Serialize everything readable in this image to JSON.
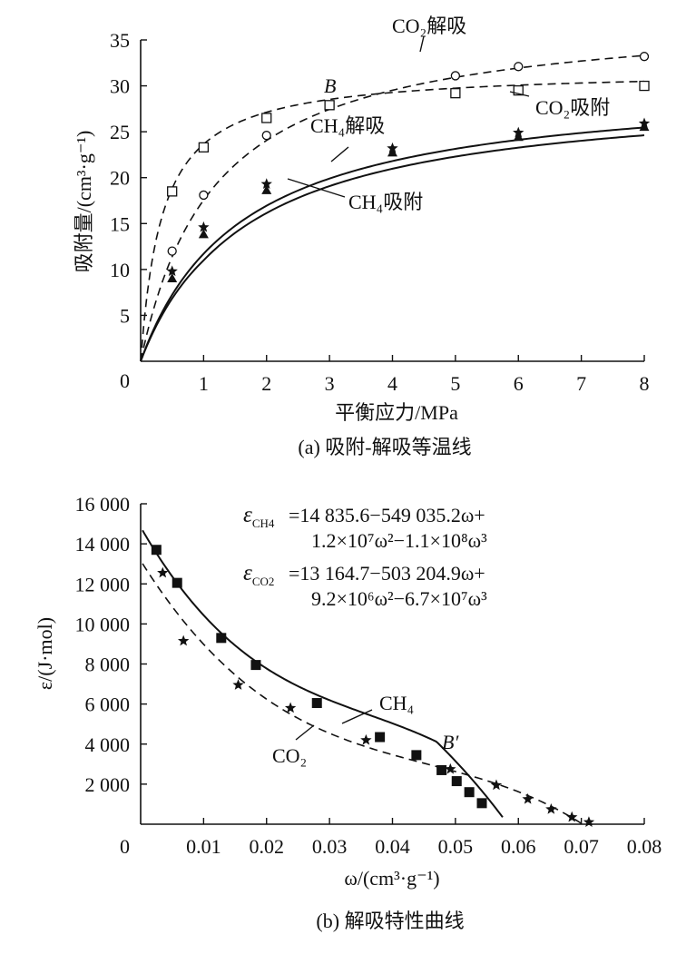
{
  "chart_data": [
    {
      "type": "line",
      "caption": "(a) 吸附-解吸等温线",
      "xlabel": "平衡应力/MPa",
      "ylabel": "吸附量/(cm³·g⁻¹)",
      "xlim": [
        0,
        8
      ],
      "ylim": [
        0,
        35
      ],
      "x_ticks": [
        "0",
        "1",
        "2",
        "3",
        "4",
        "5",
        "6",
        "7",
        "8"
      ],
      "y_ticks": [
        "5",
        "10",
        "15",
        "20",
        "25",
        "30",
        "35"
      ],
      "grid": false,
      "point_label": "B",
      "series": [
        {
          "name": "CO₂解吸",
          "line": "dashed",
          "marker": "circle",
          "x": [
            0.5,
            1,
            2,
            5,
            6,
            8
          ],
          "values": [
            12.0,
            18.1,
            24.6,
            31.1,
            32.1,
            33.2
          ]
        },
        {
          "name": "CO₂吸附",
          "line": "dashed",
          "marker": "square",
          "x": [
            0.5,
            1,
            2,
            3,
            5,
            6,
            8
          ],
          "values": [
            18.5,
            23.3,
            26.5,
            27.9,
            29.2,
            29.5,
            30.0
          ]
        },
        {
          "name": "CH₄解吸",
          "line": "solid",
          "marker": "star",
          "x": [
            0.5,
            1,
            2,
            4,
            6,
            8
          ],
          "values": [
            9.8,
            14.6,
            19.3,
            23.2,
            24.9,
            25.9
          ]
        },
        {
          "name": "CH₄吸附",
          "line": "solid",
          "marker": "triangle",
          "x": [
            0.5,
            1,
            2,
            4,
            6,
            8
          ],
          "values": [
            9.0,
            13.8,
            18.6,
            22.7,
            24.4,
            25.5
          ]
        }
      ]
    },
    {
      "type": "line",
      "caption": "(b) 解吸特性曲线",
      "xlabel": "ω/(cm³·g⁻¹)",
      "ylabel": "ε/(J·mol)",
      "xlim": [
        0,
        0.08
      ],
      "ylim": [
        0,
        16000
      ],
      "x_ticks": [
        "0",
        "0.01",
        "0.02",
        "0.03",
        "0.04",
        "0.05",
        "0.06",
        "0.07",
        "0.08"
      ],
      "y_ticks": [
        "2 000",
        "4 000",
        "6 000",
        "8 000",
        "10 000",
        "12 000",
        "14 000",
        "16 000"
      ],
      "grid": false,
      "point_label": "B′",
      "equations": {
        "ch4_line1": "=14 835.6−549 035.2ω+",
        "ch4_line2": "1.2×10⁷ω²−1.1×10⁸ω³",
        "co2_line1": "=13 164.7−503 204.9ω+",
        "co2_line2": "9.2×10⁶ω²−6.7×10⁷ω³"
      },
      "series": [
        {
          "name": "CH₄",
          "line": "solid",
          "marker": "square",
          "x": [
            0.0025,
            0.0058,
            0.0128,
            0.0183,
            0.028,
            0.038,
            0.0438,
            0.0478,
            0.0502,
            0.0522,
            0.0542
          ],
          "values": [
            13700,
            12050,
            9300,
            7950,
            6050,
            4350,
            3450,
            2700,
            2150,
            1600,
            1050
          ]
        },
        {
          "name": "CO₂",
          "line": "dashed",
          "marker": "star",
          "x": [
            0.0035,
            0.0068,
            0.0155,
            0.0238,
            0.0358,
            0.0492,
            0.0565,
            0.0615,
            0.0652,
            0.0685,
            0.0712
          ],
          "values": [
            12550,
            9150,
            6950,
            5800,
            4200,
            2750,
            1950,
            1250,
            750,
            350,
            100
          ]
        }
      ]
    }
  ]
}
